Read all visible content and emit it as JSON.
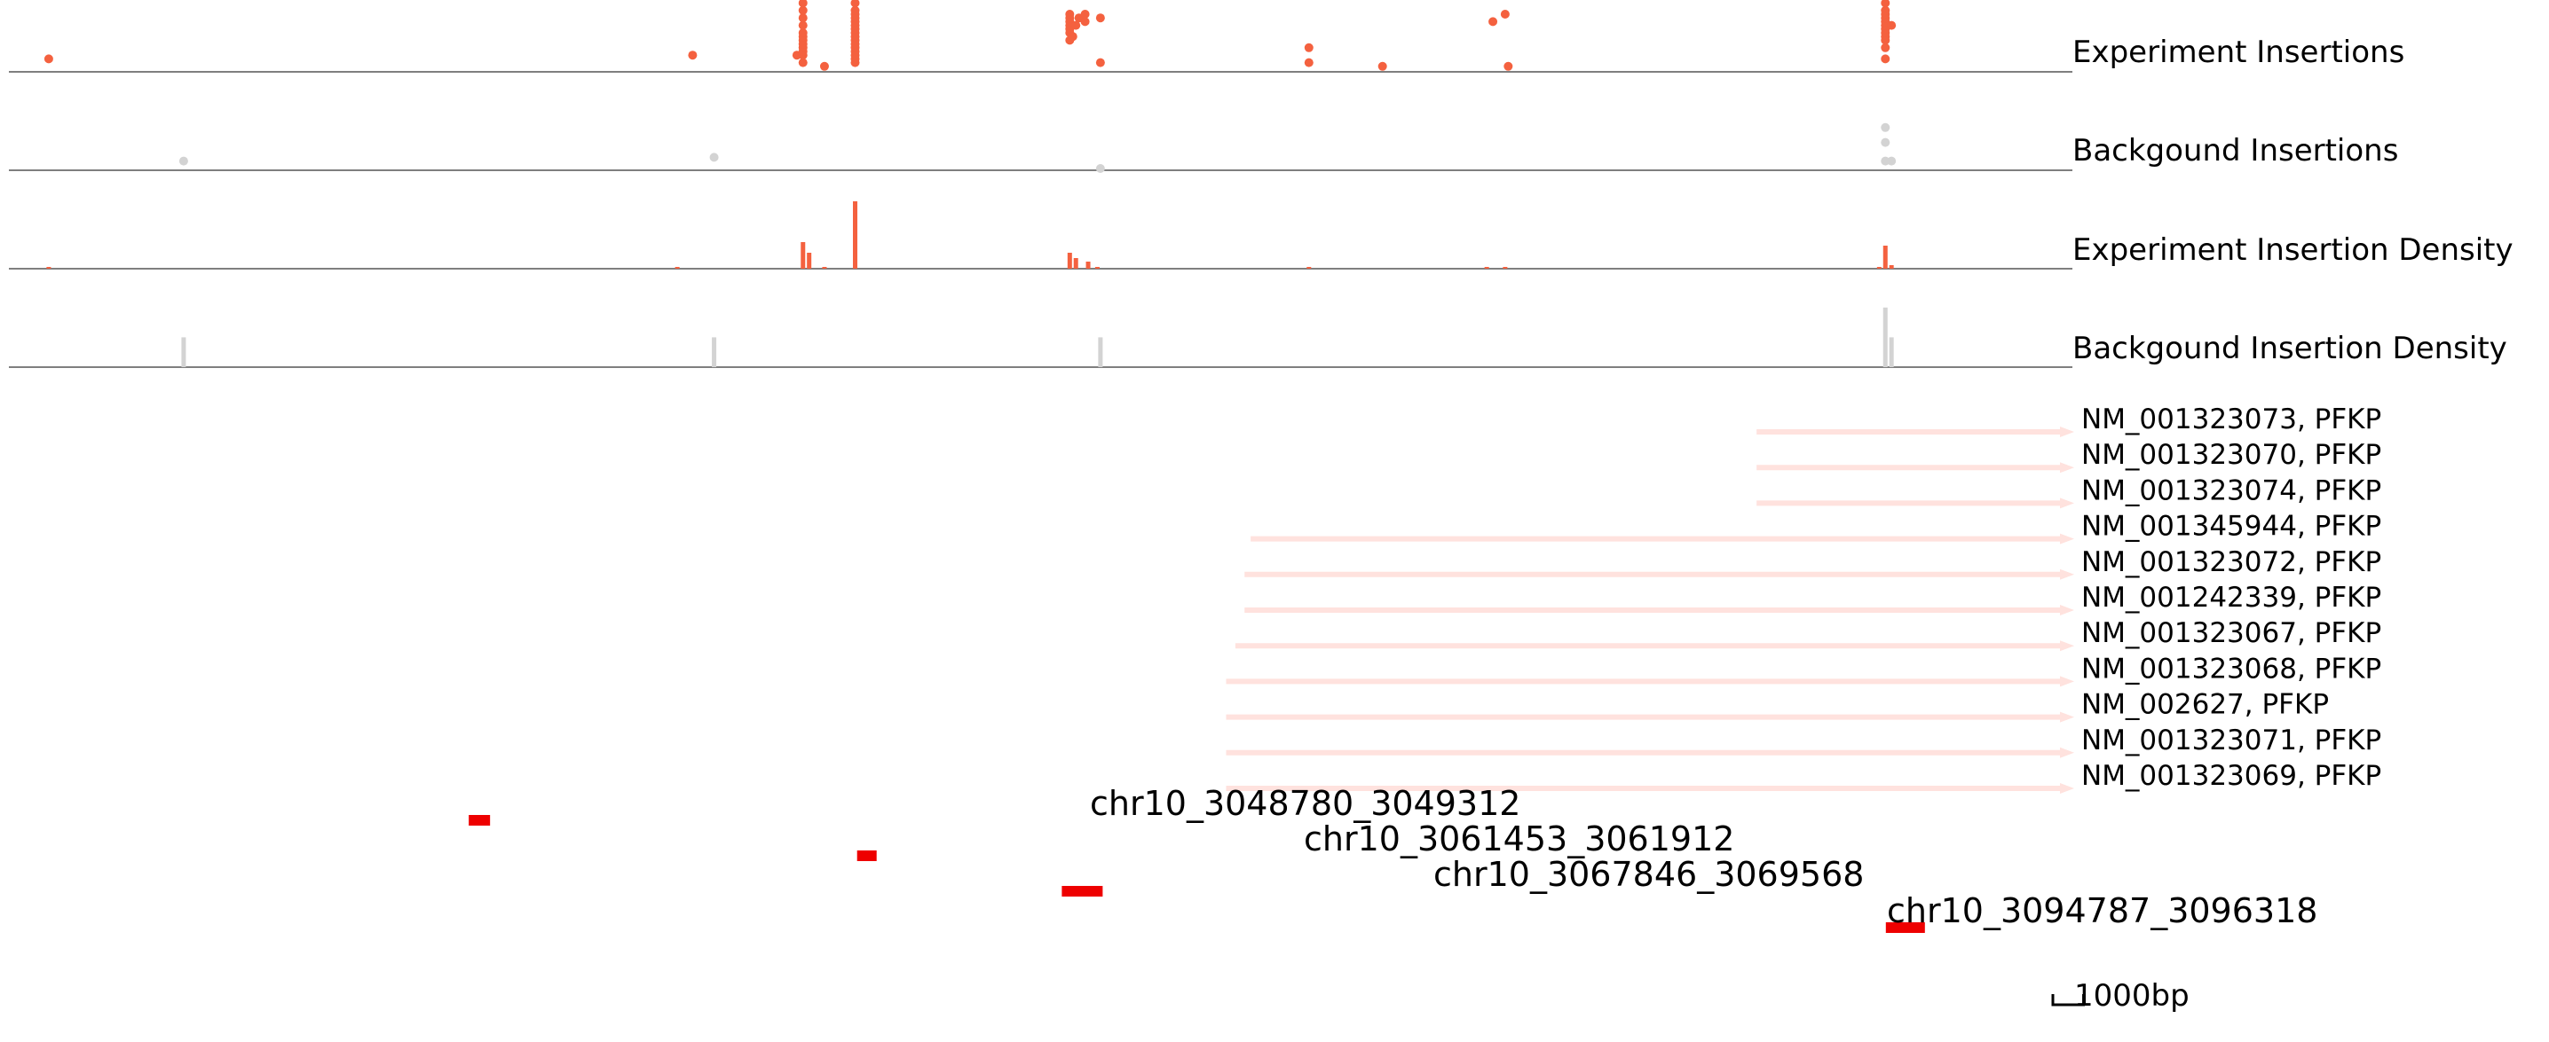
{
  "colors": {
    "experiment": "#F4613F",
    "background": "#D3D3D3",
    "transcript": "#FFE2DE",
    "peak": "#EE0000",
    "axis": "#555555",
    "text": "#000000"
  },
  "chart_data": {
    "type": "genome-browser",
    "xlim": [
      3033700,
      3101000
    ],
    "tracks": [
      {
        "label": "Experiment Insertions",
        "kind": "scatter",
        "series": "experiment"
      },
      {
        "label": "Backgound Insertions",
        "kind": "scatter",
        "series": "background"
      },
      {
        "label": "Experiment Insertion Density",
        "kind": "bars",
        "series": "experiment"
      },
      {
        "label": "Backgound Insertion Density",
        "kind": "bars",
        "series": "background"
      }
    ],
    "experiment_insertions": [
      [
        3035000,
        3
      ],
      [
        3060300,
        1
      ],
      [
        3078500,
        1
      ],
      [
        3082600,
        1
      ],
      [
        3056000,
        4
      ],
      [
        3059400,
        4
      ],
      [
        3059600,
        2
      ],
      [
        3059600,
        4
      ],
      [
        3059600,
        5
      ],
      [
        3059600,
        6
      ],
      [
        3059600,
        7
      ],
      [
        3059600,
        8
      ],
      [
        3059600,
        9
      ],
      [
        3059600,
        10
      ],
      [
        3059600,
        12
      ],
      [
        3059600,
        14
      ],
      [
        3059600,
        16
      ],
      [
        3059600,
        18
      ],
      [
        3059600,
        20
      ],
      [
        3059600,
        23
      ],
      [
        3061300,
        2
      ],
      [
        3061300,
        3
      ],
      [
        3061300,
        4
      ],
      [
        3061300,
        5
      ],
      [
        3061300,
        6
      ],
      [
        3061300,
        7
      ],
      [
        3061300,
        8
      ],
      [
        3061300,
        9
      ],
      [
        3061300,
        10
      ],
      [
        3061300,
        11
      ],
      [
        3061300,
        12
      ],
      [
        3061300,
        13
      ],
      [
        3061300,
        14
      ],
      [
        3061300,
        15
      ],
      [
        3061300,
        16
      ],
      [
        3061300,
        18
      ],
      [
        3061300,
        20
      ],
      [
        3061300,
        24
      ],
      [
        3068300,
        8
      ],
      [
        3068300,
        10
      ],
      [
        3068300,
        11
      ],
      [
        3068300,
        12
      ],
      [
        3068300,
        13
      ],
      [
        3068300,
        14
      ],
      [
        3068300,
        15
      ],
      [
        3068400,
        9
      ],
      [
        3068500,
        12
      ],
      [
        3068600,
        14
      ],
      [
        3068800,
        13
      ],
      [
        3068800,
        15
      ],
      [
        3069300,
        2
      ],
      [
        3069300,
        14
      ],
      [
        3076100,
        2
      ],
      [
        3076100,
        6
      ],
      [
        3082100,
        13
      ],
      [
        3082500,
        15
      ],
      [
        3094900,
        3
      ],
      [
        3094900,
        6
      ],
      [
        3094900,
        8
      ],
      [
        3094900,
        9
      ],
      [
        3094900,
        10
      ],
      [
        3094900,
        11
      ],
      [
        3094900,
        12
      ],
      [
        3094900,
        13
      ],
      [
        3094900,
        14
      ],
      [
        3094900,
        15
      ],
      [
        3094900,
        16
      ],
      [
        3094900,
        18
      ],
      [
        3094900,
        20
      ],
      [
        3095100,
        12
      ]
    ],
    "background_insertions": [
      [
        3039400,
        2
      ],
      [
        3056700,
        3
      ],
      [
        3069300,
        0
      ],
      [
        3094900,
        2
      ],
      [
        3095100,
        2
      ],
      [
        3094900,
        7
      ],
      [
        3094900,
        11
      ]
    ],
    "experiment_density": [
      [
        3035000,
        1
      ],
      [
        3055500,
        1
      ],
      [
        3059600,
        15
      ],
      [
        3059800,
        9
      ],
      [
        3060300,
        1
      ],
      [
        3061300,
        38
      ],
      [
        3068300,
        9
      ],
      [
        3068500,
        6
      ],
      [
        3068900,
        4
      ],
      [
        3069200,
        1
      ],
      [
        3076100,
        1
      ],
      [
        3081900,
        1
      ],
      [
        3082500,
        1
      ],
      [
        3094700,
        1
      ],
      [
        3094900,
        13
      ],
      [
        3095100,
        2
      ]
    ],
    "background_density": [
      [
        3039400,
        4
      ],
      [
        3056700,
        4
      ],
      [
        3069300,
        4
      ],
      [
        3094900,
        8
      ],
      [
        3095100,
        4
      ]
    ],
    "transcripts": [
      {
        "label": "NM_001323073, PFKP",
        "start": 3090700,
        "end": 3101000
      },
      {
        "label": "NM_001323070, PFKP",
        "start": 3090700,
        "end": 3101000
      },
      {
        "label": "NM_001323074, PFKP",
        "start": 3090700,
        "end": 3101000
      },
      {
        "label": "NM_001345944, PFKP",
        "start": 3074200,
        "end": 3101000
      },
      {
        "label": "NM_001323072, PFKP",
        "start": 3074000,
        "end": 3101000
      },
      {
        "label": "NM_001242339, PFKP",
        "start": 3074000,
        "end": 3101000
      },
      {
        "label": "NM_001323067, PFKP",
        "start": 3073700,
        "end": 3101000
      },
      {
        "label": "NM_001323068, PFKP",
        "start": 3073400,
        "end": 3101000
      },
      {
        "label": "NM_002627, PFKP",
        "start": 3073400,
        "end": 3101000
      },
      {
        "label": "NM_001323071, PFKP",
        "start": 3073400,
        "end": 3101000
      },
      {
        "label": "NM_001323069, PFKP",
        "start": 3073400,
        "end": 3101000
      }
    ],
    "peaks": [
      {
        "label": "chr10_3048780_3049312",
        "start": 3048780,
        "end": 3049312
      },
      {
        "label": "chr10_3061453_3061912",
        "start": 3061453,
        "end": 3061912
      },
      {
        "label": "chr10_3067846_3069568",
        "start": 3067846,
        "end": 3069568
      },
      {
        "label": "chr10_3094787_3096318",
        "start": 3094787,
        "end": 3096318
      }
    ],
    "scale_bar": {
      "label": "1000bp",
      "length_bp": 1000
    }
  }
}
